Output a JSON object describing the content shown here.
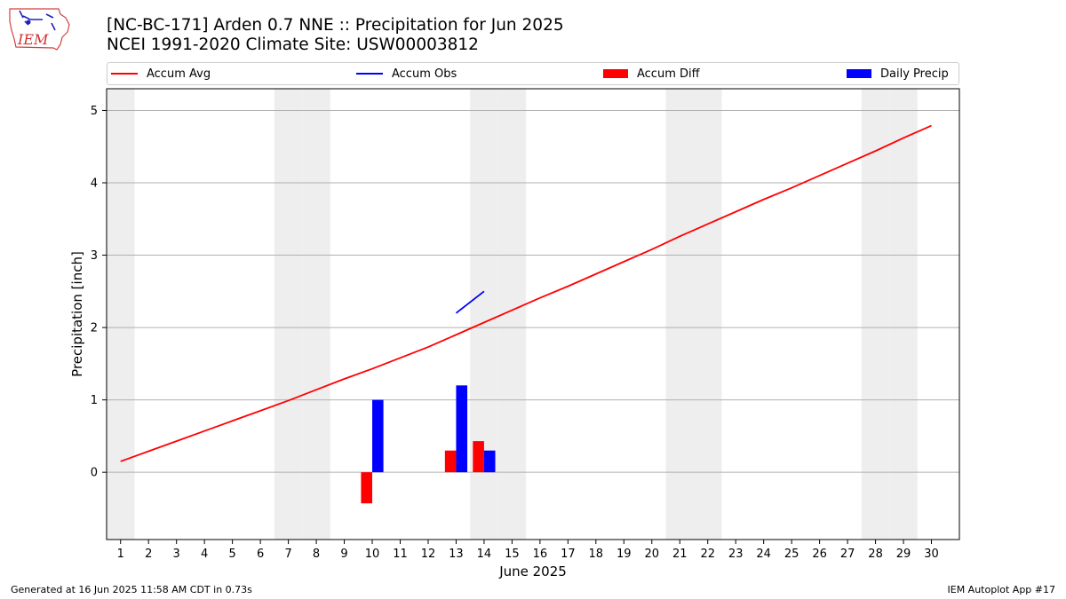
{
  "header": {
    "logo_text": "IEM",
    "title_line1": "[NC-BC-171] Arden 0.7 NNE :: Precipitation for Jun 2025",
    "title_line2": "NCEI 1991-2020 Climate Site: USW00003812"
  },
  "footer": {
    "generated": "Generated at 16 Jun 2025 11:58 AM CDT in 0.73s",
    "app": "IEM Autoplot App #17"
  },
  "colors": {
    "accum_avg": "#ff0000",
    "accum_obs": "#0000ff",
    "accum_diff": "#ff0000",
    "daily_precip": "#0000ff",
    "weekend_band": "#eeeeee",
    "grid": "#b0b0b0"
  },
  "chart_data": {
    "type": "bar",
    "xlabel": "June 2025",
    "ylabel": "Precipitation [inch]",
    "xlim": [
      0.5,
      31
    ],
    "ylim": [
      -0.93,
      5.3
    ],
    "x_ticks": [
      1,
      2,
      3,
      4,
      5,
      6,
      7,
      8,
      9,
      10,
      11,
      12,
      13,
      14,
      15,
      16,
      17,
      18,
      19,
      20,
      21,
      22,
      23,
      24,
      25,
      26,
      27,
      28,
      29,
      30
    ],
    "x_tick_labels": [
      "1",
      "2",
      "3",
      "4",
      "5",
      "6",
      "7",
      "8",
      "9",
      "10",
      "11",
      "12",
      "13",
      "14",
      "15",
      "16",
      "17",
      "18",
      "19",
      "20",
      "21",
      "22",
      "23",
      "24",
      "25",
      "26",
      "27",
      "28",
      "29",
      "30"
    ],
    "y_ticks": [
      0,
      1,
      2,
      3,
      4,
      5
    ],
    "y_tick_labels": [
      "0",
      "1",
      "2",
      "3",
      "4",
      "5"
    ],
    "grid": "horizontal",
    "legend_position": "top",
    "weekend_days": [
      1,
      7,
      8,
      14,
      15,
      21,
      22,
      28,
      29
    ],
    "series": [
      {
        "name": "Accum Avg",
        "kind": "line",
        "x": [
          1,
          2,
          3,
          4,
          5,
          6,
          7,
          8,
          9,
          10,
          11,
          12,
          13,
          14,
          15,
          16,
          17,
          18,
          19,
          20,
          21,
          22,
          23,
          24,
          25,
          26,
          27,
          28,
          29,
          30
        ],
        "values": [
          0.15,
          0.29,
          0.43,
          0.57,
          0.71,
          0.85,
          0.99,
          1.14,
          1.29,
          1.43,
          1.58,
          1.73,
          1.9,
          2.07,
          2.24,
          2.41,
          2.57,
          2.74,
          2.91,
          3.08,
          3.26,
          3.43,
          3.6,
          3.77,
          3.93,
          4.1,
          4.27,
          4.44,
          4.62,
          4.79
        ]
      },
      {
        "name": "Accum Obs",
        "kind": "line",
        "x": [
          13,
          14
        ],
        "values": [
          2.2,
          2.5
        ]
      },
      {
        "name": "Accum Diff",
        "kind": "bar",
        "x": [
          10,
          13,
          14
        ],
        "values": [
          -0.43,
          0.3,
          0.43
        ]
      },
      {
        "name": "Daily Precip",
        "kind": "bar",
        "x": [
          10,
          13,
          14
        ],
        "values": [
          1.0,
          1.2,
          0.3
        ]
      }
    ]
  }
}
